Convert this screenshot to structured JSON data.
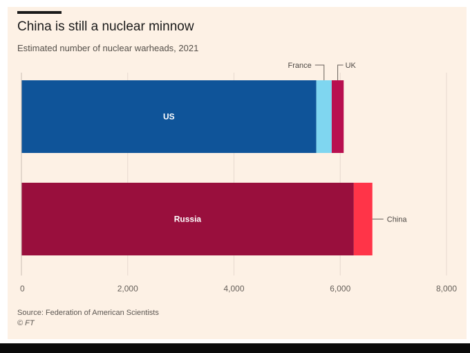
{
  "chart_data": {
    "type": "bar",
    "orientation": "horizontal",
    "stacked": true,
    "title": "China is still a nuclear minnow",
    "subtitle": "Estimated number of nuclear warheads, 2021",
    "xlim": [
      0,
      8000
    ],
    "xticks": [
      0,
      2000,
      4000,
      6000,
      8000
    ],
    "xtick_labels": [
      "0",
      "2,000",
      "4,000",
      "6,000",
      "8,000"
    ],
    "grid": true,
    "bars": [
      {
        "label": "US",
        "segments": [
          {
            "name": "US",
            "value": 5550,
            "color": "#0f5499",
            "inside_label": "US"
          },
          {
            "name": "France",
            "value": 290,
            "color": "#7fd6f0",
            "callout": "France"
          },
          {
            "name": "UK",
            "value": 225,
            "color": "#b80f4f",
            "callout": "UK"
          }
        ]
      },
      {
        "label": "Russia",
        "segments": [
          {
            "name": "Russia",
            "value": 6255,
            "color": "#990f3d",
            "inside_label": "Russia"
          },
          {
            "name": "China",
            "value": 350,
            "color": "#ff3448",
            "callout": "China"
          }
        ]
      }
    ],
    "source": "Source: Federation of American Scientists",
    "credit": "© FT"
  },
  "colors": {
    "background": "#fdf1e5",
    "gridline": "#e6d9ce",
    "axis": "#c9bdb2",
    "tick_text": "#66605a"
  }
}
